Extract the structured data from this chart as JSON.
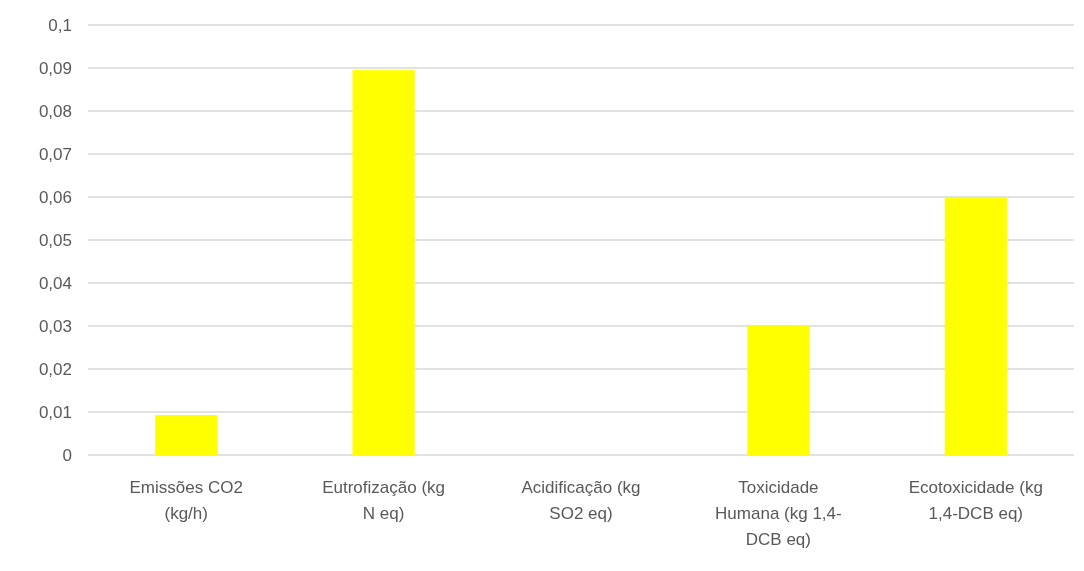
{
  "chart_data": {
    "type": "bar",
    "categories": [
      "Emissões CO2\n(kg/h)",
      "Eutrofização (kg\nN eq)",
      "Acidificação (kg\nSO2 eq)",
      "Toxicidade\nHumana (kg 1,4-\nDCB eq)",
      "Ecotoxicidade (kg\n1,4-DCB eq)"
    ],
    "values": [
      0.0093,
      0.0895,
      0,
      0.03,
      0.06
    ],
    "color": "#ffff00",
    "ylim": [
      0,
      0.1
    ],
    "yticks": [
      {
        "value": 0,
        "label": "0"
      },
      {
        "value": 0.01,
        "label": "0,01"
      },
      {
        "value": 0.02,
        "label": "0,02"
      },
      {
        "value": 0.03,
        "label": "0,03"
      },
      {
        "value": 0.04,
        "label": "0,04"
      },
      {
        "value": 0.05,
        "label": "0,05"
      },
      {
        "value": 0.06,
        "label": "0,06"
      },
      {
        "value": 0.07,
        "label": "0,07"
      },
      {
        "value": 0.08,
        "label": "0,08"
      },
      {
        "value": 0.09,
        "label": "0,09"
      },
      {
        "value": 0.1,
        "label": "0,1"
      }
    ],
    "grid": "y"
  }
}
